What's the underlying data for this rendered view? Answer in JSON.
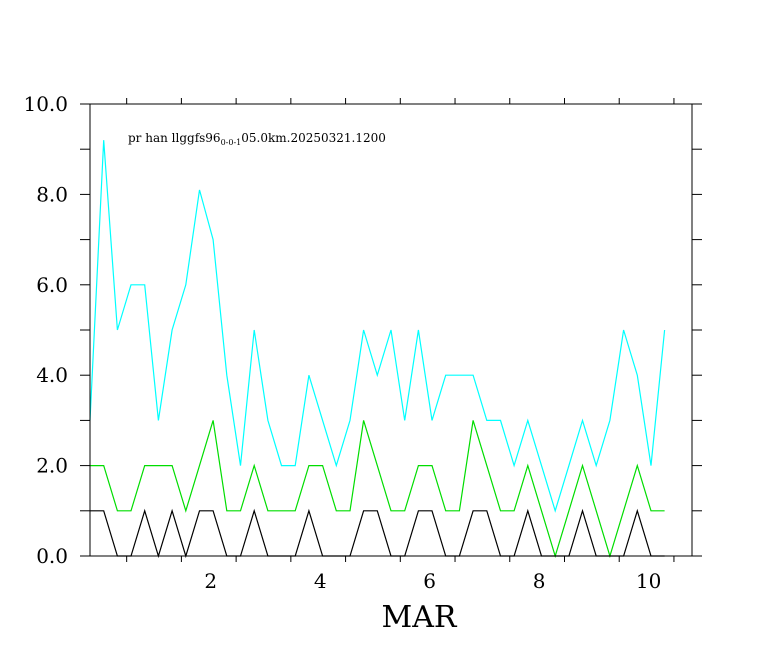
{
  "chart_data": {
    "type": "line",
    "title": {
      "prefix": "pr han llggfs96",
      "subscript": "0-0-1",
      "suffix": "05.0km.20250321.1200"
    },
    "xlabel": "MAR",
    "ylabel": "",
    "xlim": [
      0.33,
      11.33
    ],
    "ylim": [
      0,
      10
    ],
    "x_ticks": [
      {
        "value": 2,
        "label": "2"
      },
      {
        "value": 4,
        "label": "4"
      },
      {
        "value": 6,
        "label": "6"
      },
      {
        "value": 8,
        "label": "8"
      },
      {
        "value": 10,
        "label": "10"
      }
    ],
    "y_ticks": [
      {
        "value": 0,
        "label": "0.0"
      },
      {
        "value": 2,
        "label": "2.0"
      },
      {
        "value": 4,
        "label": "4.0"
      },
      {
        "value": 6,
        "label": "6.0"
      },
      {
        "value": 8,
        "label": "8.0"
      },
      {
        "value": 10,
        "label": "10.0"
      }
    ],
    "x_start": 0.33,
    "x_step": 0.25,
    "series": [
      {
        "color": "#00ffff",
        "values": [
          3.0,
          9.2,
          5.0,
          6.0,
          6.0,
          3.0,
          5.0,
          6.0,
          8.1,
          7.0,
          4.0,
          2.0,
          5.0,
          3.0,
          2.0,
          2.0,
          4.0,
          3.0,
          2.0,
          3.0,
          5.0,
          4.0,
          5.0,
          3.0,
          5.0,
          3.0,
          4.0,
          4.0,
          4.0,
          3.0,
          3.0,
          2.0,
          3.0,
          2.0,
          1.0,
          2.0,
          3.0,
          2.0,
          3.0,
          5.0,
          4.0,
          2.0,
          5.0
        ]
      },
      {
        "color": "#00dd00",
        "values": [
          2.0,
          2.0,
          1.0,
          1.0,
          2.0,
          2.0,
          2.0,
          1.0,
          2.0,
          3.0,
          1.0,
          1.0,
          2.0,
          1.0,
          1.0,
          1.0,
          2.0,
          2.0,
          1.0,
          1.0,
          3.0,
          2.0,
          1.0,
          1.0,
          2.0,
          2.0,
          1.0,
          1.0,
          3.0,
          2.0,
          1.0,
          1.0,
          2.0,
          1.0,
          0.0,
          1.0,
          2.0,
          1.0,
          0.0,
          1.0,
          2.0,
          1.0,
          1.0
        ]
      },
      {
        "color": "#000000",
        "values": [
          1.0,
          1.0,
          0.0,
          0.0,
          1.0,
          0.0,
          1.0,
          0.0,
          1.0,
          1.0,
          0.0,
          0.0,
          1.0,
          0.0,
          0.0,
          0.0,
          1.0,
          0.0,
          0.0,
          0.0,
          1.0,
          1.0,
          0.0,
          0.0,
          1.0,
          1.0,
          0.0,
          0.0,
          1.0,
          1.0,
          0.0,
          0.0,
          1.0,
          0.0,
          0.0,
          0.0,
          1.0,
          0.0,
          0.0,
          0.0,
          1.0,
          0.0,
          0.0
        ]
      }
    ],
    "grid": false,
    "legend": "none"
  }
}
